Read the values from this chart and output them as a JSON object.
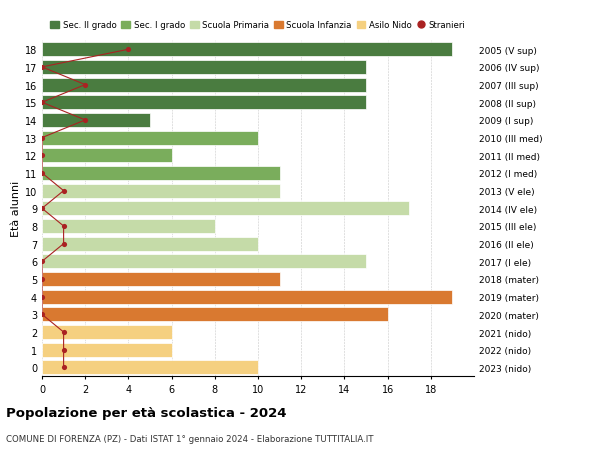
{
  "ages": [
    18,
    17,
    16,
    15,
    14,
    13,
    12,
    11,
    10,
    9,
    8,
    7,
    6,
    5,
    4,
    3,
    2,
    1,
    0
  ],
  "years": [
    "2005 (V sup)",
    "2006 (IV sup)",
    "2007 (III sup)",
    "2008 (II sup)",
    "2009 (I sup)",
    "2010 (III med)",
    "2011 (II med)",
    "2012 (I med)",
    "2013 (V ele)",
    "2014 (IV ele)",
    "2015 (III ele)",
    "2016 (II ele)",
    "2017 (I ele)",
    "2018 (mater)",
    "2019 (mater)",
    "2020 (mater)",
    "2021 (nido)",
    "2022 (nido)",
    "2023 (nido)"
  ],
  "bar_values": [
    19,
    15,
    15,
    15,
    5,
    10,
    6,
    11,
    11,
    17,
    8,
    10,
    15,
    11,
    19,
    16,
    6,
    6,
    10
  ],
  "bar_colors": [
    "#4a7c40",
    "#4a7c40",
    "#4a7c40",
    "#4a7c40",
    "#4a7c40",
    "#7aad5c",
    "#7aad5c",
    "#7aad5c",
    "#c5dba8",
    "#c5dba8",
    "#c5dba8",
    "#c5dba8",
    "#c5dba8",
    "#d97930",
    "#d97930",
    "#d97930",
    "#f5d080",
    "#f5d080",
    "#f5d080"
  ],
  "stranieri_values": [
    4,
    0,
    2,
    0,
    2,
    0,
    0,
    0,
    1,
    0,
    1,
    1,
    0,
    0,
    0,
    0,
    1,
    1,
    1
  ],
  "stranieri_color": "#aa2222",
  "left_ylabel": "Età alunni",
  "title": "Popolazione per età scolastica - 2024",
  "subtitle": "COMUNE DI FORENZA (PZ) - Dati ISTAT 1° gennaio 2024 - Elaborazione TUTTITALIA.IT",
  "xlim": [
    0,
    20
  ],
  "legend_labels": [
    "Sec. II grado",
    "Sec. I grado",
    "Scuola Primaria",
    "Scuola Infanzia",
    "Asilo Nido",
    "Stranieri"
  ],
  "legend_colors": [
    "#4a7c40",
    "#7aad5c",
    "#c5dba8",
    "#d97930",
    "#f5d080",
    "#aa2222"
  ],
  "bg_color": "#ffffff",
  "bar_height": 0.8
}
